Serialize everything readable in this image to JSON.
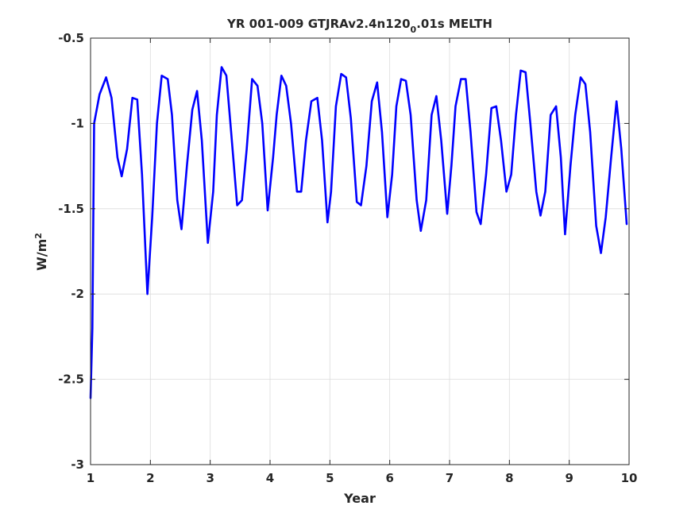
{
  "chart_data": {
    "type": "line",
    "title": "YR 001-009 GTJRAv2.4n120",
    "title_subscript": "0",
    "title_suffix": ".01s MELTH",
    "xlabel": "Year",
    "ylabel_base": "W/m",
    "ylabel_superscript": "2",
    "xlim": [
      1,
      10
    ],
    "ylim": [
      -3,
      -0.5
    ],
    "grid": true,
    "x_ticks": [
      1,
      2,
      3,
      4,
      5,
      6,
      7,
      8,
      9,
      10
    ],
    "x_tick_labels": [
      "1",
      "2",
      "3",
      "4",
      "5",
      "6",
      "7",
      "8",
      "9",
      "10"
    ],
    "y_ticks": [
      -3,
      -2.5,
      -2,
      -1.5,
      -1,
      -0.5
    ],
    "y_tick_labels": [
      "-3",
      "-2.5",
      "-2",
      "-1.5",
      "-1",
      "-0.5"
    ],
    "series": [
      {
        "color": "#0000ff",
        "points": [
          [
            1.0,
            -2.61
          ],
          [
            1.03,
            -2.2
          ],
          [
            1.06,
            -1.0
          ],
          [
            1.15,
            -0.83
          ],
          [
            1.26,
            -0.73
          ],
          [
            1.35,
            -0.85
          ],
          [
            1.45,
            -1.2
          ],
          [
            1.52,
            -1.31
          ],
          [
            1.61,
            -1.15
          ],
          [
            1.7,
            -0.85
          ],
          [
            1.78,
            -0.86
          ],
          [
            1.86,
            -1.3
          ],
          [
            1.95,
            -2.0
          ],
          [
            2.03,
            -1.55
          ],
          [
            2.11,
            -1.0
          ],
          [
            2.19,
            -0.72
          ],
          [
            2.29,
            -0.74
          ],
          [
            2.36,
            -0.95
          ],
          [
            2.45,
            -1.45
          ],
          [
            2.52,
            -1.62
          ],
          [
            2.61,
            -1.25
          ],
          [
            2.7,
            -0.92
          ],
          [
            2.78,
            -0.81
          ],
          [
            2.86,
            -1.1
          ],
          [
            2.96,
            -1.7
          ],
          [
            3.05,
            -1.4
          ],
          [
            3.11,
            -0.95
          ],
          [
            3.19,
            -0.67
          ],
          [
            3.27,
            -0.72
          ],
          [
            3.35,
            -1.05
          ],
          [
            3.45,
            -1.48
          ],
          [
            3.53,
            -1.45
          ],
          [
            3.61,
            -1.15
          ],
          [
            3.7,
            -0.74
          ],
          [
            3.79,
            -0.78
          ],
          [
            3.87,
            -1.0
          ],
          [
            3.96,
            -1.51
          ],
          [
            4.05,
            -1.2
          ],
          [
            4.11,
            -0.95
          ],
          [
            4.19,
            -0.72
          ],
          [
            4.27,
            -0.78
          ],
          [
            4.35,
            -1.0
          ],
          [
            4.45,
            -1.4
          ],
          [
            4.52,
            -1.4
          ],
          [
            4.6,
            -1.1
          ],
          [
            4.69,
            -0.87
          ],
          [
            4.79,
            -0.85
          ],
          [
            4.87,
            -1.1
          ],
          [
            4.96,
            -1.58
          ],
          [
            5.02,
            -1.4
          ],
          [
            5.1,
            -0.9
          ],
          [
            5.19,
            -0.71
          ],
          [
            5.27,
            -0.73
          ],
          [
            5.35,
            -0.97
          ],
          [
            5.45,
            -1.46
          ],
          [
            5.52,
            -1.48
          ],
          [
            5.61,
            -1.25
          ],
          [
            5.7,
            -0.87
          ],
          [
            5.79,
            -0.76
          ],
          [
            5.87,
            -1.05
          ],
          [
            5.96,
            -1.55
          ],
          [
            6.04,
            -1.3
          ],
          [
            6.11,
            -0.9
          ],
          [
            6.19,
            -0.74
          ],
          [
            6.27,
            -0.75
          ],
          [
            6.35,
            -0.95
          ],
          [
            6.45,
            -1.45
          ],
          [
            6.52,
            -1.63
          ],
          [
            6.61,
            -1.45
          ],
          [
            6.7,
            -0.95
          ],
          [
            6.78,
            -0.84
          ],
          [
            6.86,
            -1.1
          ],
          [
            6.96,
            -1.53
          ],
          [
            7.03,
            -1.25
          ],
          [
            7.1,
            -0.9
          ],
          [
            7.19,
            -0.74
          ],
          [
            7.27,
            -0.74
          ],
          [
            7.35,
            -1.05
          ],
          [
            7.45,
            -1.52
          ],
          [
            7.52,
            -1.59
          ],
          [
            7.61,
            -1.3
          ],
          [
            7.7,
            -0.91
          ],
          [
            7.78,
            -0.9
          ],
          [
            7.86,
            -1.1
          ],
          [
            7.95,
            -1.4
          ],
          [
            8.03,
            -1.3
          ],
          [
            8.11,
            -0.95
          ],
          [
            8.19,
            -0.69
          ],
          [
            8.27,
            -0.7
          ],
          [
            8.35,
            -1.0
          ],
          [
            8.45,
            -1.4
          ],
          [
            8.52,
            -1.54
          ],
          [
            8.6,
            -1.4
          ],
          [
            8.69,
            -0.95
          ],
          [
            8.78,
            -0.9
          ],
          [
            8.86,
            -1.2
          ],
          [
            8.93,
            -1.65
          ],
          [
            9.02,
            -1.25
          ],
          [
            9.1,
            -0.95
          ],
          [
            9.19,
            -0.73
          ],
          [
            9.27,
            -0.77
          ],
          [
            9.35,
            -1.05
          ],
          [
            9.45,
            -1.6
          ],
          [
            9.53,
            -1.76
          ],
          [
            9.61,
            -1.55
          ],
          [
            9.7,
            -1.2
          ],
          [
            9.79,
            -0.87
          ],
          [
            9.87,
            -1.15
          ],
          [
            9.96,
            -1.59
          ]
        ]
      }
    ]
  }
}
